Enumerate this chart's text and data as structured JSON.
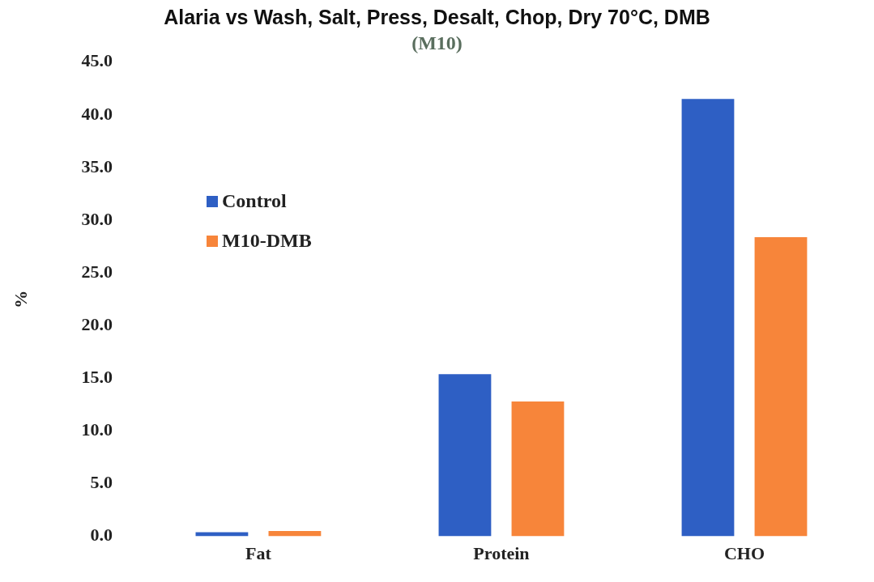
{
  "chart_data": {
    "type": "bar",
    "title": "Alaria vs Wash, Salt, Press, Desalt, Chop, Dry 70°C, DMB",
    "subtitle": "(M10)",
    "ylabel": "%",
    "categories": [
      "Fat",
      "Protein",
      "CHO"
    ],
    "series": [
      {
        "name": "Control",
        "color": "#2e5fc4",
        "values": [
          0.4,
          15.4,
          41.5
        ]
      },
      {
        "name": "M10-DMB",
        "color": "#f7853a",
        "values": [
          0.5,
          12.8,
          28.4
        ]
      }
    ],
    "ylim": [
      0,
      45
    ],
    "yticks": [
      {
        "value": 0,
        "label": "0.0"
      },
      {
        "value": 5,
        "label": "5.0"
      },
      {
        "value": 10,
        "label": "10.0"
      },
      {
        "value": 15,
        "label": "15.0"
      },
      {
        "value": 20,
        "label": "20.0"
      },
      {
        "value": 25,
        "label": "25.0"
      },
      {
        "value": 30,
        "label": "30.0"
      },
      {
        "value": 35,
        "label": "35.0"
      },
      {
        "value": 40,
        "label": "40.0"
      },
      {
        "value": 45,
        "label": "45.0"
      }
    ],
    "grid": false,
    "legend": "left"
  }
}
